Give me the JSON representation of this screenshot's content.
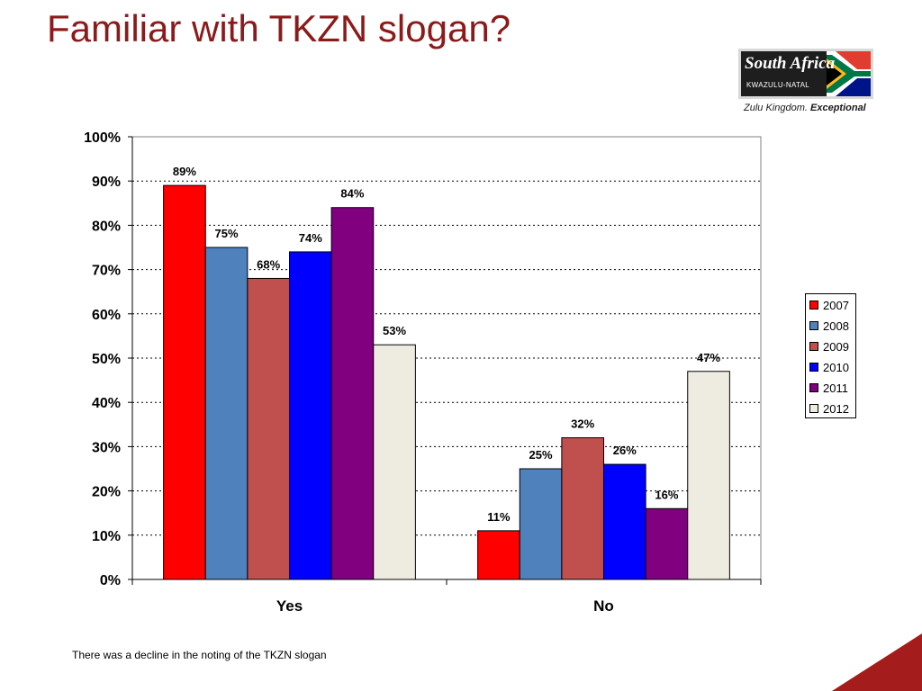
{
  "slide": {
    "title": "Familiar with TKZN slogan?",
    "caption": "There was a decline in the noting of the TKZN slogan"
  },
  "logo": {
    "wordmark": "South Africa",
    "region": "KWAZULU-NATAL",
    "tagline_prefix": "Zulu Kingdom.",
    "tagline_emphasis": "Exceptional"
  },
  "colors": {
    "title": "#8b1a1a",
    "corner_accent": "#a51c1c"
  },
  "chart_data": {
    "type": "bar",
    "title": "",
    "xlabel": "",
    "ylabel": "",
    "categories": [
      "Yes",
      "No"
    ],
    "ylim": [
      0,
      100
    ],
    "yticks": [
      0,
      10,
      20,
      30,
      40,
      50,
      60,
      70,
      80,
      90,
      100
    ],
    "ytick_labels": [
      "0%",
      "10%",
      "20%",
      "30%",
      "40%",
      "50%",
      "60%",
      "70%",
      "80%",
      "90%",
      "100%"
    ],
    "value_suffix": "%",
    "grid": "horizontal dotted",
    "legend_position": "right",
    "series": [
      {
        "name": "2007",
        "color": "#ff0000",
        "values": [
          89,
          11
        ]
      },
      {
        "name": "2008",
        "color": "#4f81bd",
        "values": [
          75,
          25
        ]
      },
      {
        "name": "2009",
        "color": "#c0504d",
        "values": [
          68,
          32
        ]
      },
      {
        "name": "2010",
        "color": "#0000ff",
        "values": [
          74,
          26
        ]
      },
      {
        "name": "2011",
        "color": "#800080",
        "values": [
          84,
          16
        ]
      },
      {
        "name": "2012",
        "color": "#eeece1",
        "values": [
          53,
          47
        ]
      }
    ]
  }
}
